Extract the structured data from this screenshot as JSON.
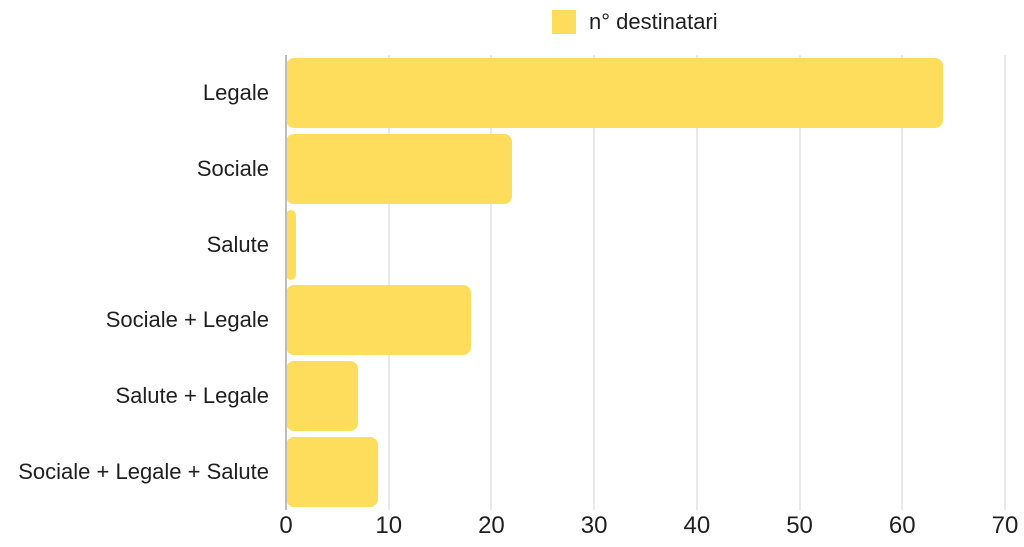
{
  "legend": {
    "label": "n° destinatari"
  },
  "chart_data": {
    "type": "bar",
    "orientation": "horizontal",
    "title": "",
    "xlabel": "",
    "ylabel": "",
    "categories": [
      "Legale",
      "Sociale",
      "Salute",
      "Sociale + Legale",
      "Salute + Legale",
      "Sociale + Legale + Salute"
    ],
    "series": [
      {
        "name": "n° destinatari",
        "values": [
          64,
          22,
          1,
          18,
          7,
          9
        ]
      }
    ],
    "xlim": [
      0,
      70
    ],
    "xticks": [
      0,
      10,
      20,
      30,
      40,
      50,
      60,
      70
    ],
    "grid": true,
    "legend_position": "top-center",
    "colors": {
      "bar": "#FFDD5C",
      "gridline": "#E9E9E9",
      "axis_line": "#BDBDBD",
      "text": "#1F1F1F",
      "background": "#FFFFFF"
    }
  }
}
